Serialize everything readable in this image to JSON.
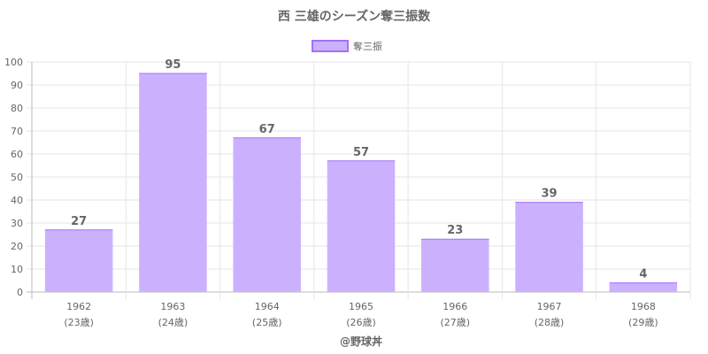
{
  "chart_data": {
    "type": "bar",
    "title": "西 三雄のシーズン奪三振数",
    "categories": [
      "1962",
      "1963",
      "1964",
      "1965",
      "1966",
      "1967",
      "1968"
    ],
    "category_sublabels": [
      "(23歳)",
      "(24歳)",
      "(25歳)",
      "(26歳)",
      "(27歳)",
      "(28歳)",
      "(29歳)"
    ],
    "series": [
      {
        "name": "奪三振",
        "values": [
          27,
          95,
          67,
          57,
          23,
          39,
          4
        ]
      }
    ],
    "ylim": [
      0,
      100
    ],
    "yticks": [
      0,
      10,
      20,
      30,
      40,
      50,
      60,
      70,
      80,
      90,
      100
    ],
    "grid": true,
    "legend": "top-center",
    "colors": {
      "bar_fill": "#cbb1fd",
      "bar_border": "#a56ffc"
    },
    "credit": "@野球丼"
  }
}
